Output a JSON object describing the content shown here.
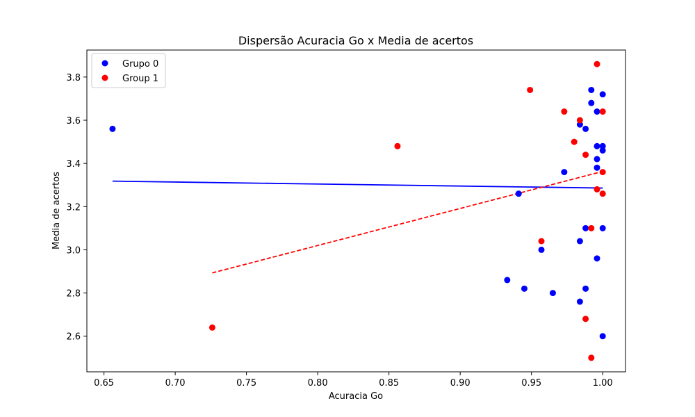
{
  "chart_data": {
    "type": "scatter",
    "title": "Dispersão Acuracia Go x Media de acertos",
    "xlabel": "Acuracia Go",
    "ylabel": "Media de acertos",
    "xlim": [
      0.638,
      1.016
    ],
    "ylim": [
      2.435,
      3.925
    ],
    "xticks": [
      0.65,
      0.7,
      0.75,
      0.8,
      0.85,
      0.9,
      0.95,
      1.0
    ],
    "xtick_labels": [
      "0.65",
      "0.70",
      "0.75",
      "0.80",
      "0.85",
      "0.90",
      "0.95",
      "1.00"
    ],
    "yticks": [
      2.6,
      2.8,
      3.0,
      3.2,
      3.4,
      3.6,
      3.8
    ],
    "ytick_labels": [
      "2.6",
      "2.8",
      "3.0",
      "3.2",
      "3.4",
      "3.6",
      "3.8"
    ],
    "grid": false,
    "legend_position": "top-left",
    "series": [
      {
        "name": "Grupo 0",
        "color": "#0000ff",
        "points": [
          [
            0.656,
            3.56
          ],
          [
            0.933,
            2.86
          ],
          [
            0.941,
            3.26
          ],
          [
            0.945,
            2.82
          ],
          [
            0.957,
            3.0
          ],
          [
            0.965,
            2.8
          ],
          [
            0.973,
            3.36
          ],
          [
            0.984,
            3.58
          ],
          [
            0.984,
            3.04
          ],
          [
            0.984,
            2.76
          ],
          [
            0.988,
            3.56
          ],
          [
            0.988,
            3.1
          ],
          [
            0.988,
            2.82
          ],
          [
            0.992,
            3.74
          ],
          [
            0.992,
            3.68
          ],
          [
            0.996,
            3.64
          ],
          [
            0.996,
            3.48
          ],
          [
            0.996,
            3.42
          ],
          [
            0.996,
            3.38
          ],
          [
            0.996,
            2.96
          ],
          [
            1.0,
            3.72
          ],
          [
            1.0,
            3.48
          ],
          [
            1.0,
            3.46
          ],
          [
            1.0,
            3.1
          ],
          [
            1.0,
            2.6
          ]
        ],
        "trend": {
          "style": "solid",
          "x": [
            0.656,
            1.0
          ],
          "y": [
            3.318,
            3.286
          ]
        }
      },
      {
        "name": "Group 1",
        "color": "#ff0000",
        "points": [
          [
            0.726,
            2.64
          ],
          [
            0.856,
            3.48
          ],
          [
            0.949,
            3.74
          ],
          [
            0.957,
            3.04
          ],
          [
            0.973,
            3.64
          ],
          [
            0.98,
            3.5
          ],
          [
            0.984,
            3.6
          ],
          [
            0.988,
            3.44
          ],
          [
            0.988,
            2.68
          ],
          [
            0.992,
            3.1
          ],
          [
            0.992,
            2.5
          ],
          [
            0.996,
            3.86
          ],
          [
            0.996,
            3.28
          ],
          [
            1.0,
            3.64
          ],
          [
            1.0,
            3.36
          ],
          [
            1.0,
            3.26
          ]
        ],
        "trend": {
          "style": "dashed",
          "x": [
            0.726,
            1.0
          ],
          "y": [
            2.893,
            3.363
          ]
        }
      }
    ]
  }
}
